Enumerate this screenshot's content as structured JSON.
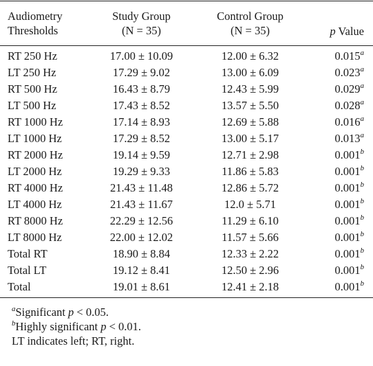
{
  "header": {
    "col1_line1": "Audiometry",
    "col1_line2": "Thresholds",
    "col2_line1": "Study Group",
    "col2_line2": "(N = 35)",
    "col3_line1": "Control Group",
    "col3_line2": "(N = 35)",
    "col4_p": "p",
    "col4_rest": " Value"
  },
  "rows": [
    {
      "label": "RT 250 Hz",
      "study": "17.00 ± 10.09",
      "control": "12.00 ± 6.32",
      "p": "0.015",
      "sig": "a"
    },
    {
      "label": "LT 250 Hz",
      "study": "17.29 ± 9.02",
      "control": "13.00 ± 6.09",
      "p": "0.023",
      "sig": "a"
    },
    {
      "label": "RT 500 Hz",
      "study": "16.43 ± 8.79",
      "control": "12.43 ± 5.99",
      "p": "0.029",
      "sig": "a"
    },
    {
      "label": "LT 500 Hz",
      "study": "17.43 ± 8.52",
      "control": "13.57 ± 5.50",
      "p": "0.028",
      "sig": "a"
    },
    {
      "label": "RT 1000 Hz",
      "study": "17.14 ± 8.93",
      "control": "12.69 ± 5.88",
      "p": "0.016",
      "sig": "a"
    },
    {
      "label": "LT 1000 Hz",
      "study": "17.29 ± 8.52",
      "control": "13.00 ± 5.17",
      "p": "0.013",
      "sig": "a"
    },
    {
      "label": "RT 2000 Hz",
      "study": "19.14 ± 9.59",
      "control": "12.71 ± 2.98",
      "p": "0.001",
      "sig": "b"
    },
    {
      "label": "LT 2000 Hz",
      "study": "19.29 ± 9.33",
      "control": "11.86 ± 5.83",
      "p": "0.001",
      "sig": "b"
    },
    {
      "label": "RT 4000 Hz",
      "study": "21.43 ± 11.48",
      "control": "12.86 ± 5.72",
      "p": "0.001",
      "sig": "b"
    },
    {
      "label": "LT 4000 Hz",
      "study": "21.43 ± 11.67",
      "control": "12.0 ± 5.71",
      "p": "0.001",
      "sig": "b"
    },
    {
      "label": "RT 8000 Hz",
      "study": "22.29 ± 12.56",
      "control": "11.29 ± 6.10",
      "p": "0.001",
      "sig": "b"
    },
    {
      "label": "LT 8000 Hz",
      "study": "22.00 ± 12.02",
      "control": "11.57 ± 5.66",
      "p": "0.001",
      "sig": "b"
    },
    {
      "label": "Total RT",
      "study": "18.90 ± 8.84",
      "control": "12.33 ± 2.22",
      "p": "0.001",
      "sig": "b"
    },
    {
      "label": "Total LT",
      "study": "19.12 ± 8.41",
      "control": "12.50 ± 2.96",
      "p": "0.001",
      "sig": "b"
    },
    {
      "label": "Total",
      "study": "19.01 ± 8.61",
      "control": "12.41 ± 2.18",
      "p": "0.001",
      "sig": "b"
    }
  ],
  "footnotes": {
    "a_mark": "a",
    "a_text_1": "Significant ",
    "a_text_p": "p",
    "a_text_2": " < 0.05.",
    "b_mark": "b",
    "b_text_1": "Highly significant ",
    "b_text_p": "p",
    "b_text_2": " < 0.01.",
    "legend": "LT indicates left; RT, right."
  }
}
